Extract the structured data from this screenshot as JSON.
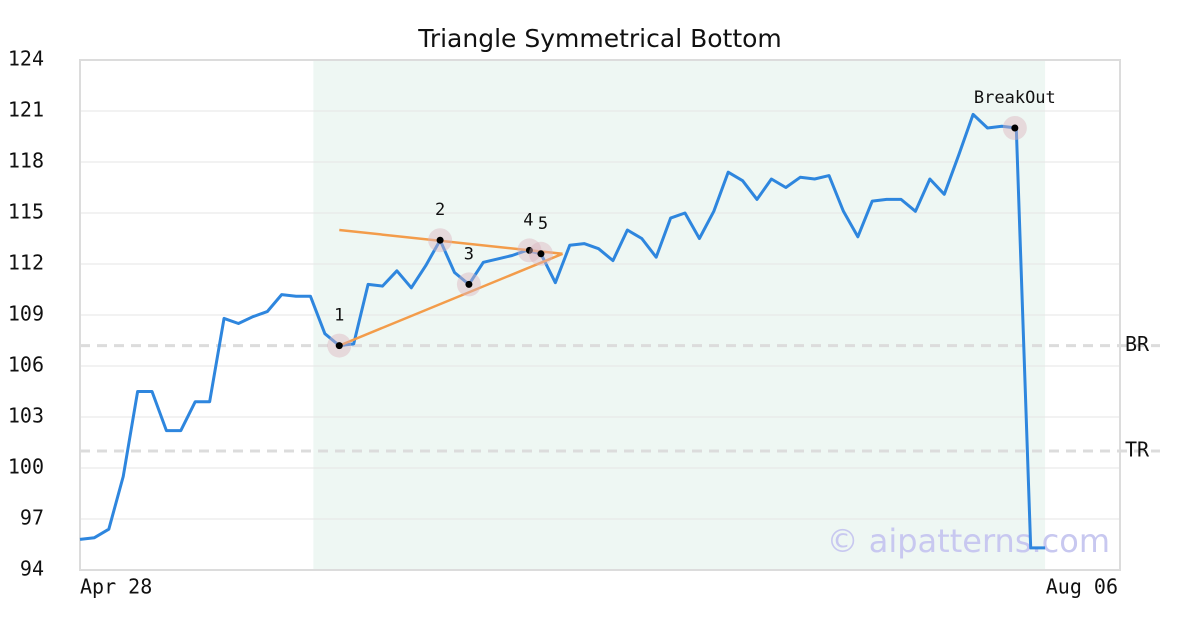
{
  "chart_data": {
    "type": "line",
    "title": "Triangle Symmetrical Bottom",
    "x_end_labels": [
      "Apr 28",
      "Aug 06"
    ],
    "values": [
      95.8,
      95.9,
      96.4,
      99.5,
      104.5,
      104.5,
      102.2,
      102.2,
      103.9,
      103.9,
      108.8,
      108.5,
      108.9,
      109.2,
      110.2,
      110.1,
      110.1,
      107.9,
      107.2,
      107.3,
      110.8,
      110.7,
      111.6,
      110.6,
      111.9,
      113.4,
      111.5,
      110.8,
      112.1,
      112.3,
      112.5,
      112.8,
      112.6,
      110.9,
      113.1,
      113.2,
      112.9,
      112.2,
      114.0,
      113.5,
      112.4,
      114.7,
      115.0,
      113.5,
      115.1,
      117.4,
      116.9,
      115.8,
      117.0,
      116.5,
      117.1,
      117.0,
      117.2,
      115.1,
      113.6,
      115.7,
      115.8,
      115.8,
      115.1,
      117.0,
      116.1,
      118.4,
      120.8,
      120.0,
      120.1,
      120.0,
      95.3,
      95.3
    ],
    "color": "#2e86de",
    "xlim": [
      0,
      72.2
    ],
    "ylim": [
      94,
      124
    ],
    "yticks": [
      94,
      97,
      100,
      103,
      106,
      109,
      112,
      115,
      118,
      121,
      124
    ],
    "grid": true,
    "highlight_range": [
      16.2,
      67
    ],
    "levels": [
      {
        "label": "BR",
        "value": 107.2
      },
      {
        "label": "TR",
        "value": 101.0
      }
    ],
    "trend_lines": [
      {
        "color": "#f39c4a",
        "x": [
          18,
          33.5
        ],
        "y": [
          114.0,
          112.6
        ]
      },
      {
        "color": "#f39c4a",
        "x": [
          18,
          33.5
        ],
        "y": [
          107.2,
          112.6
        ]
      }
    ],
    "points": [
      {
        "label": "1",
        "x": 18,
        "y": 107.2
      },
      {
        "label": "2",
        "x": 25,
        "y": 113.4
      },
      {
        "label": "3",
        "x": 27,
        "y": 110.8
      },
      {
        "label": "4",
        "x": 31.2,
        "y": 112.8
      },
      {
        "label": "5",
        "x": 32,
        "y": 112.6
      },
      {
        "label": "BreakOut",
        "x": 64.9,
        "y": 120.0
      }
    ],
    "watermark": "© aipatterns.com"
  }
}
